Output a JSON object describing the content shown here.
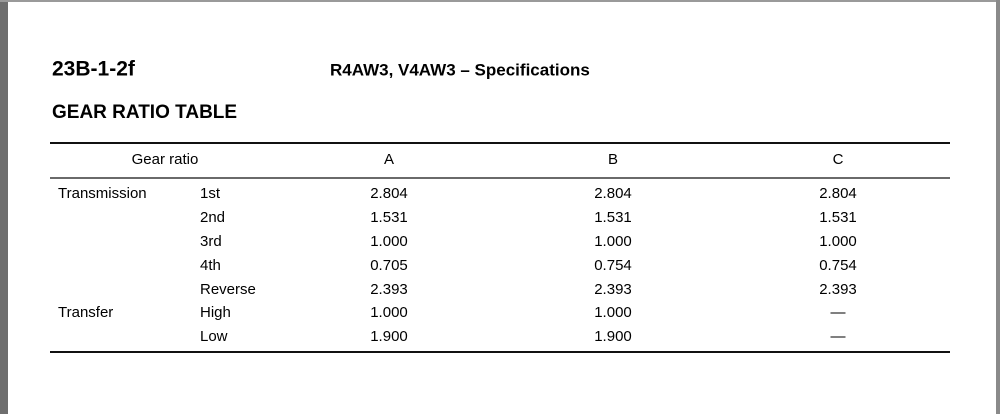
{
  "header": {
    "code": "23B-1-2f",
    "title": "R4AW3, V4AW3 – Specifications"
  },
  "section_title": "GEAR RATIO TABLE",
  "table": {
    "columns": [
      "Gear ratio",
      "A",
      "B",
      "C"
    ],
    "rows": [
      {
        "group": "Transmission",
        "gear": "1st",
        "values": [
          "2.804",
          "2.804",
          "2.804"
        ]
      },
      {
        "gear": "2nd",
        "values": [
          "1.531",
          "1.531",
          "1.531"
        ]
      },
      {
        "gear": "3rd",
        "values": [
          "1.000",
          "1.000",
          "1.000"
        ]
      },
      {
        "gear": "4th",
        "values": [
          "0.705",
          "0.754",
          "0.754"
        ]
      },
      {
        "gear": "Reverse",
        "values": [
          "2.393",
          "2.393",
          "2.393"
        ]
      },
      {
        "group": "Transfer",
        "gear": "High",
        "values": [
          "1.000",
          "1.000",
          "—"
        ]
      },
      {
        "gear": "Low",
        "values": [
          "1.900",
          "1.900",
          "—"
        ]
      }
    ]
  }
}
